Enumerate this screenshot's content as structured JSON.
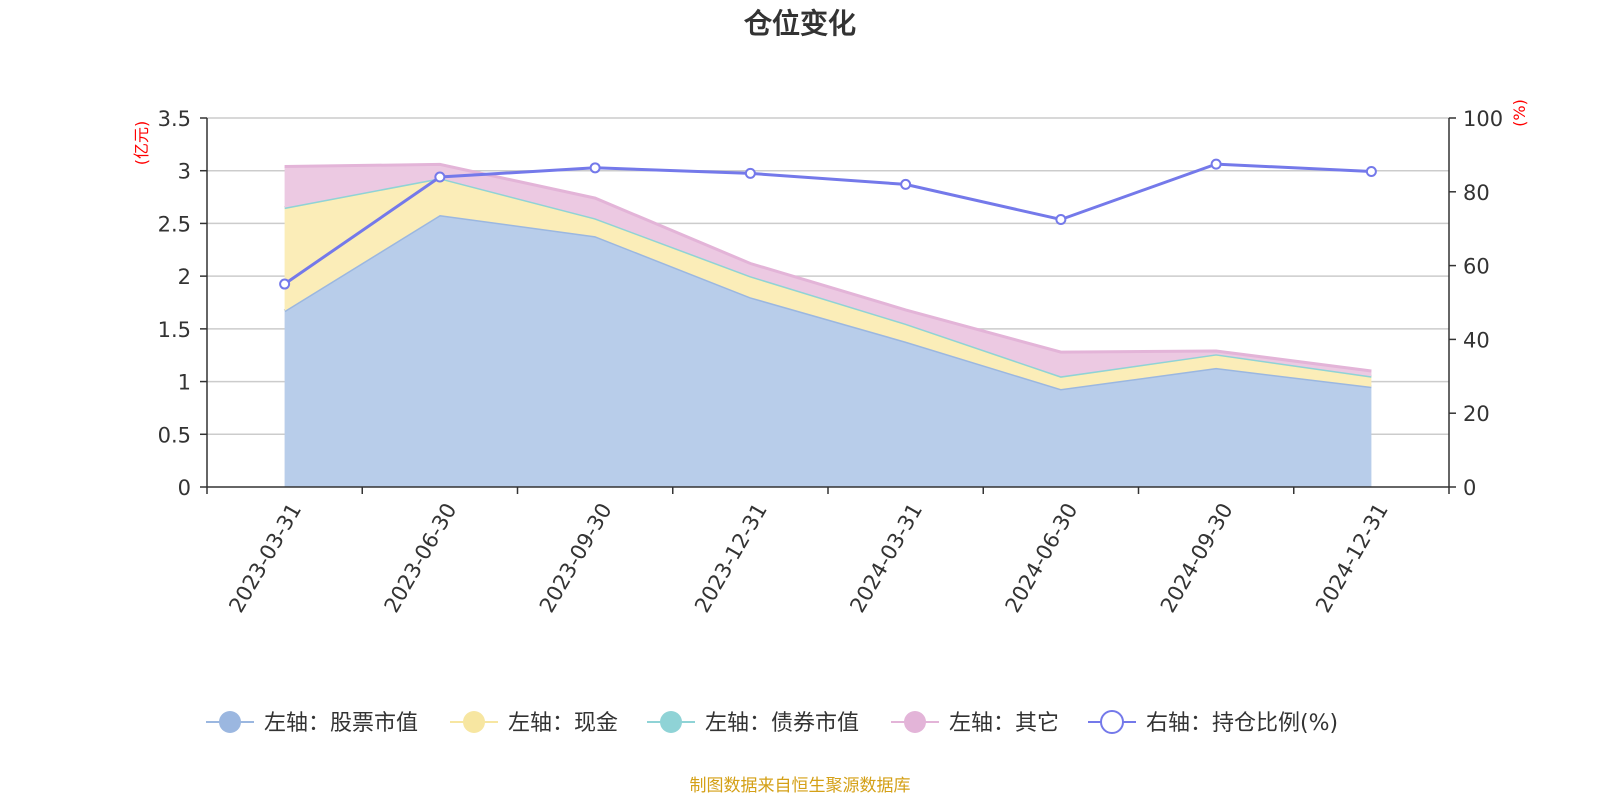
{
  "chart_data": {
    "type": "area",
    "title": "仓位变化",
    "categories": [
      "2023-03-31",
      "2023-06-30",
      "2023-09-30",
      "2023-12-31",
      "2024-03-31",
      "2024-06-30",
      "2024-09-30",
      "2024-12-31"
    ],
    "left_axis": {
      "unit_label": "(亿元)",
      "ylim": [
        0,
        3.5
      ],
      "ticks": [
        "0",
        "0.5",
        "1",
        "1.5",
        "2",
        "2.5",
        "3",
        "3.5"
      ]
    },
    "right_axis": {
      "unit_label": "(%)",
      "ylim": [
        0,
        100
      ],
      "ticks": [
        "0",
        "20",
        "40",
        "60",
        "80",
        "100"
      ]
    },
    "series": [
      {
        "name": "左轴：股票市值",
        "axis": "left",
        "kind": "stacked-area",
        "color": "#9bb7e0",
        "fill": "#b8cdea",
        "values": [
          1.67,
          2.58,
          2.38,
          1.8,
          1.38,
          0.93,
          1.13,
          0.95
        ]
      },
      {
        "name": "左轴：现金",
        "axis": "left",
        "kind": "stacked-area",
        "color": "#f7e6a1",
        "fill": "#fbedb8",
        "values": [
          0.98,
          0.35,
          0.17,
          0.2,
          0.17,
          0.12,
          0.13,
          0.1
        ]
      },
      {
        "name": "左轴：债券市值",
        "axis": "left",
        "kind": "stacked-area",
        "color": "#8fd3d6",
        "fill": "#a9dfe1",
        "values": [
          0,
          0,
          0,
          0,
          0,
          0,
          0,
          0
        ]
      },
      {
        "name": "左轴：其它",
        "axis": "left",
        "kind": "stacked-area",
        "color": "#e3b4d8",
        "fill": "#ecc9e2",
        "values": [
          0.39,
          0.13,
          0.19,
          0.12,
          0.13,
          0.23,
          0.03,
          0.05
        ]
      },
      {
        "name": "右轴：持仓比例(%)",
        "axis": "right",
        "kind": "line",
        "color": "#7479ea",
        "values": [
          55,
          84,
          86.5,
          85,
          82,
          72.5,
          87.5,
          85.5
        ]
      }
    ],
    "legend_position": "bottom-center",
    "grid": true
  },
  "footer": {
    "source": "制图数据来自恒生聚源数据库"
  }
}
